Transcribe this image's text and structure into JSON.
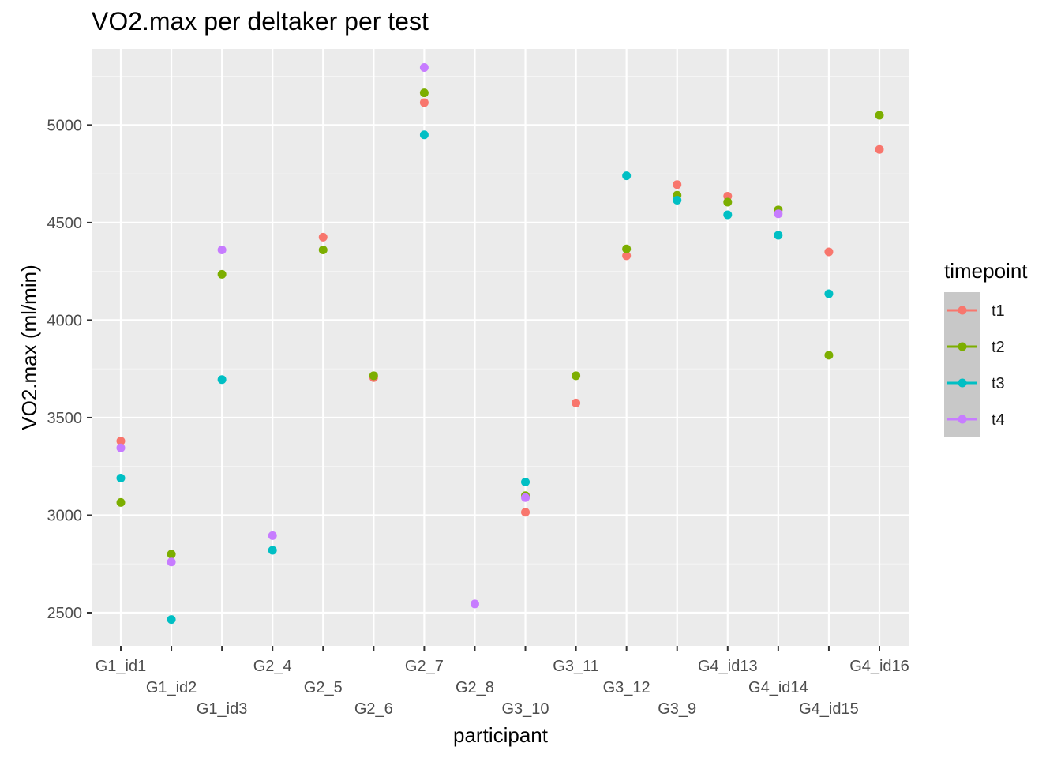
{
  "chart_data": {
    "type": "scatter",
    "title": "VO2.max per deltaker per test",
    "xlabel": "participant",
    "ylabel": "VO2.max (ml/min)",
    "ylim": [
      2330,
      5390
    ],
    "yticks": [
      2500,
      3000,
      3500,
      4000,
      4500,
      5000
    ],
    "ytick_labels": [
      "2500",
      "3000",
      "3500",
      "4000",
      "4500",
      "5000"
    ],
    "categories": [
      "G1_id1",
      "G1_id2",
      "G1_id3",
      "G2_4",
      "G2_5",
      "G2_6",
      "G2_7",
      "G2_8",
      "G3_10",
      "G3_11",
      "G3_12",
      "G3_9",
      "G4_id13",
      "G4_id14",
      "G4_id15",
      "G4_id16"
    ],
    "grid": true,
    "legend": {
      "title": "timepoint",
      "position": "right"
    },
    "series": [
      {
        "name": "t1",
        "color": "#F8766D",
        "values": [
          3380,
          null,
          null,
          null,
          4425,
          3705,
          5115,
          null,
          3015,
          3575,
          4330,
          4695,
          4635,
          null,
          4350,
          4875
        ]
      },
      {
        "name": "t2",
        "color": "#7CAE00",
        "values": [
          3065,
          2800,
          4235,
          null,
          4360,
          3715,
          5165,
          null,
          3100,
          3715,
          4365,
          4640,
          4605,
          4565,
          3820,
          5050
        ]
      },
      {
        "name": "t3",
        "color": "#00BFC4",
        "values": [
          3190,
          2465,
          3695,
          2820,
          null,
          null,
          4950,
          null,
          3170,
          null,
          4740,
          4615,
          4540,
          4435,
          4135,
          null
        ]
      },
      {
        "name": "t4",
        "color": "#C77CFF",
        "values": [
          3345,
          2760,
          4360,
          2895,
          null,
          null,
          5295,
          2545,
          3090,
          null,
          null,
          null,
          null,
          4545,
          null,
          null
        ]
      }
    ]
  }
}
